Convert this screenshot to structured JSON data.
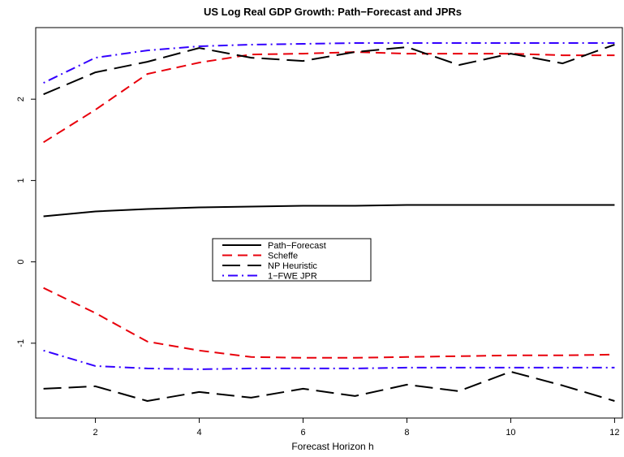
{
  "chart_data": {
    "type": "line",
    "title": "US Log Real GDP Growth: Path−Forecast and JPRs",
    "xlabel": "Forecast Horizon h",
    "ylabel": "",
    "xlim": [
      0.85,
      12.15
    ],
    "ylim": [
      -1.92,
      2.88
    ],
    "x_ticks": [
      2,
      4,
      6,
      8,
      10,
      12
    ],
    "y_ticks": [
      -1,
      0,
      1,
      2
    ],
    "y_tick_labels": [
      "-1",
      "0",
      "1",
      "2"
    ],
    "legend_position": "center",
    "x": [
      1,
      2,
      3,
      4,
      5,
      6,
      7,
      8,
      9,
      10,
      11,
      12
    ],
    "series": [
      {
        "name": "Path−Forecast",
        "color": "#000000",
        "style": "solid",
        "bands": [
          [
            0.56,
            0.62,
            0.65,
            0.67,
            0.68,
            0.69,
            0.69,
            0.7,
            0.7,
            0.7,
            0.7,
            0.7
          ]
        ]
      },
      {
        "name": "Scheffe",
        "color": "#e8000b",
        "style": "dashed",
        "bands": [
          [
            1.47,
            1.87,
            2.31,
            2.45,
            2.55,
            2.56,
            2.58,
            2.56,
            2.56,
            2.56,
            2.54,
            2.54
          ],
          [
            -0.32,
            -0.63,
            -0.98,
            -1.09,
            -1.17,
            -1.18,
            -1.18,
            -1.17,
            -1.16,
            -1.15,
            -1.15,
            -1.14
          ]
        ]
      },
      {
        "name": "NP Heuristic",
        "color": "#000000",
        "style": "longdash",
        "bands": [
          [
            2.06,
            2.33,
            2.46,
            2.63,
            2.51,
            2.47,
            2.58,
            2.64,
            2.42,
            2.56,
            2.44,
            2.67
          ],
          [
            -1.56,
            -1.53,
            -1.71,
            -1.6,
            -1.67,
            -1.56,
            -1.65,
            -1.51,
            -1.59,
            -1.35,
            -1.52,
            -1.71
          ]
        ]
      },
      {
        "name": "1−FWE JPR",
        "color": "#3300ff",
        "style": "dotdash",
        "bands": [
          [
            2.2,
            2.51,
            2.6,
            2.65,
            2.67,
            2.68,
            2.69,
            2.69,
            2.69,
            2.69,
            2.69,
            2.69
          ],
          [
            -1.09,
            -1.28,
            -1.31,
            -1.32,
            -1.31,
            -1.31,
            -1.31,
            -1.3,
            -1.3,
            -1.3,
            -1.3,
            -1.3
          ]
        ]
      }
    ]
  }
}
